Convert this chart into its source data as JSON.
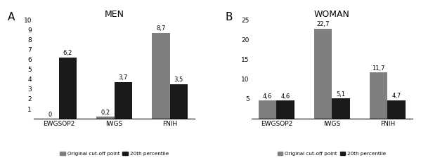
{
  "men": {
    "title": "MEN",
    "panel_label": "A",
    "categories": [
      "EWGSOP2",
      "IWGS",
      "FNIH"
    ],
    "original": [
      0,
      0.2,
      8.7
    ],
    "percentile20": [
      6.2,
      3.7,
      3.5
    ],
    "ylim": [
      0,
      10
    ],
    "yticks": [
      1,
      2,
      3,
      4,
      5,
      6,
      7,
      8,
      9,
      10
    ]
  },
  "women": {
    "title": "WOMAN",
    "panel_label": "B",
    "categories": [
      "EWGSOP2",
      "IWGS",
      "FNIH"
    ],
    "original": [
      4.6,
      22.7,
      11.7
    ],
    "percentile20": [
      4.6,
      5.1,
      4.7
    ],
    "ylim": [
      0,
      25
    ],
    "yticks": [
      5,
      10,
      15,
      20,
      25
    ]
  },
  "bar_color_original": "#7f7f7f",
  "bar_color_20th": "#1a1a1a",
  "bar_width": 0.32,
  "legend_labels": [
    "Original cut-off point",
    "20th percentile"
  ],
  "title_fontsize": 9,
  "tick_fontsize": 6.5,
  "annot_fontsize": 6,
  "panel_fontsize": 11
}
